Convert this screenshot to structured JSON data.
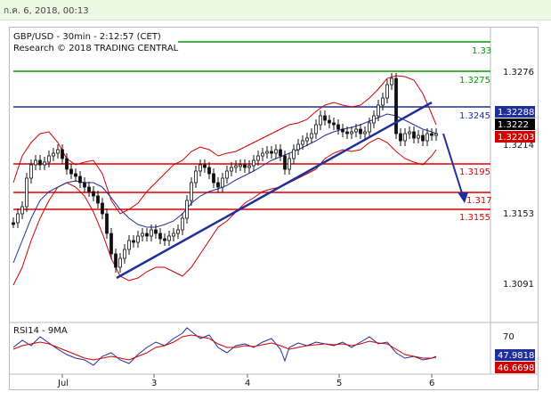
{
  "header": {
    "datetime": "ก.ค. 6, 2018, 00:13"
  },
  "chart_data": {
    "type": "line",
    "title": "GBP/USD - 30min - 2:12:57 (CET)",
    "subtitle": "Research © 2018 TRADING CENTRAL",
    "ylim": [
      1.306,
      1.33
    ],
    "y_ticks": [
      "1.3276",
      "1.3214",
      "1.3153",
      "1.3091"
    ],
    "x_ticks": [
      "Jul",
      "3",
      "4",
      "5",
      "6"
    ],
    "levels": [
      {
        "label": "1.33",
        "value": 1.33,
        "color": "#009900"
      },
      {
        "label": "1.3275",
        "value": 1.3275,
        "color": "#009900"
      },
      {
        "label": "1.3245",
        "value": 1.3245,
        "color": "#1f2f9a"
      },
      {
        "label": "1.3195",
        "value": 1.3195,
        "color": "#e00000"
      },
      {
        "label": "1.317",
        "value": 1.317,
        "color": "#e00000"
      },
      {
        "label": "1.3155",
        "value": 1.3155,
        "color": "#e00000"
      }
    ],
    "price_tags": [
      {
        "label": "1.32288",
        "bg": "#1f2f9a"
      },
      {
        "label": "1.3222",
        "bg": "#000000"
      },
      {
        "label": "1.32203",
        "bg": "#d00000"
      }
    ],
    "rsi": {
      "title": "RSI14 - 9MA",
      "tick": "70",
      "value_tags": [
        {
          "label": "47.9818",
          "bg": "#1f2f9a"
        },
        {
          "label": "46.6698",
          "bg": "#d00000"
        }
      ]
    },
    "colors": {
      "candle": "#111111",
      "bollinger": "#d00000",
      "ma": "#1f2f9a",
      "trendline": "#1f2f9a",
      "arrow": "#1f2f9a"
    }
  }
}
